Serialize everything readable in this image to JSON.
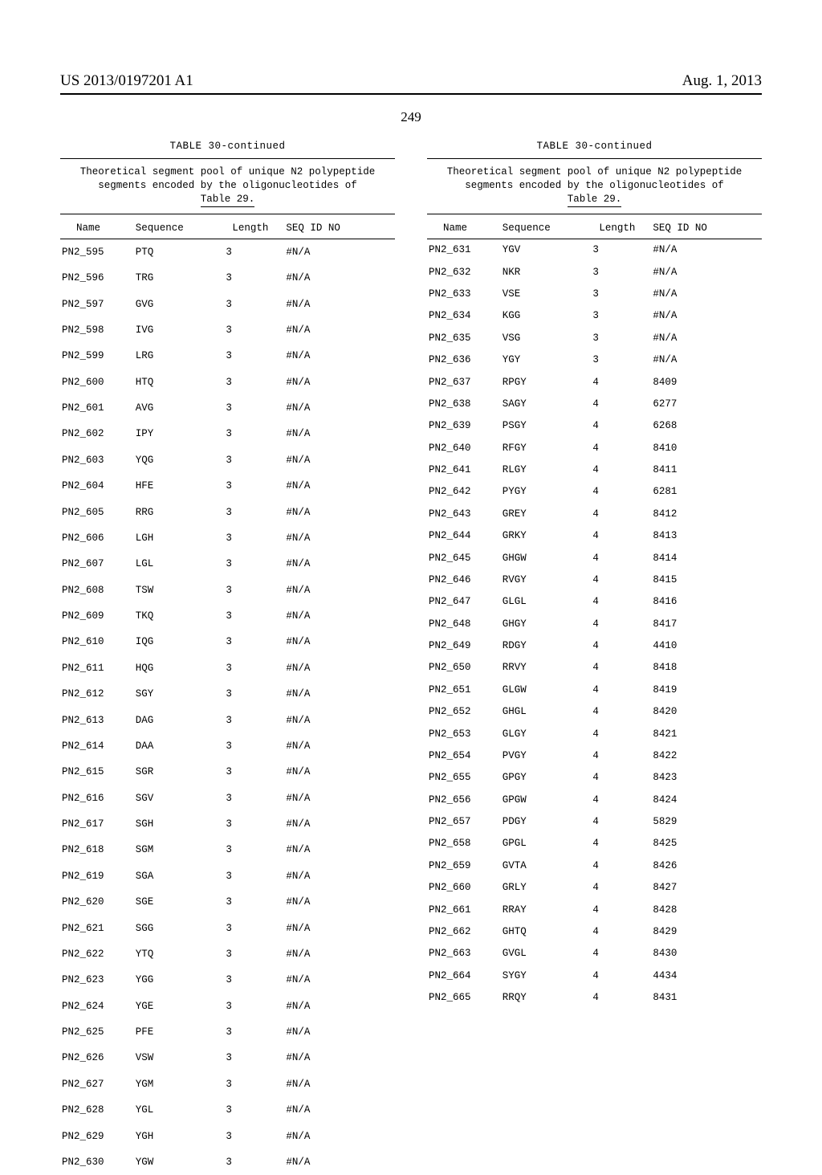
{
  "header": {
    "pub_number": "US 2013/0197201 A1",
    "pub_date": "Aug. 1, 2013",
    "page_number": "249"
  },
  "table": {
    "title": "TABLE 30-continued",
    "caption_line1": "Theoretical segment pool of unique N2 polypeptide",
    "caption_line2": "segments encoded by the oligonucleotides of",
    "caption_line3": "Table 29.",
    "headers": {
      "name": "Name",
      "sequence": "Sequence",
      "length": "Length",
      "seq_id": "SEQ ID NO"
    }
  },
  "left_rows": [
    {
      "name": "PN2_595",
      "seq": "PTQ",
      "len": "3",
      "id": "#N/A"
    },
    {
      "name": "PN2_596",
      "seq": "TRG",
      "len": "3",
      "id": "#N/A"
    },
    {
      "name": "PN2_597",
      "seq": "GVG",
      "len": "3",
      "id": "#N/A"
    },
    {
      "name": "PN2_598",
      "seq": "IVG",
      "len": "3",
      "id": "#N/A"
    },
    {
      "name": "PN2_599",
      "seq": "LRG",
      "len": "3",
      "id": "#N/A"
    },
    {
      "name": "PN2_600",
      "seq": "HTQ",
      "len": "3",
      "id": "#N/A"
    },
    {
      "name": "PN2_601",
      "seq": "AVG",
      "len": "3",
      "id": "#N/A"
    },
    {
      "name": "PN2_602",
      "seq": "IPY",
      "len": "3",
      "id": "#N/A"
    },
    {
      "name": "PN2_603",
      "seq": "YQG",
      "len": "3",
      "id": "#N/A"
    },
    {
      "name": "PN2_604",
      "seq": "HFE",
      "len": "3",
      "id": "#N/A"
    },
    {
      "name": "PN2_605",
      "seq": "RRG",
      "len": "3",
      "id": "#N/A"
    },
    {
      "name": "PN2_606",
      "seq": "LGH",
      "len": "3",
      "id": "#N/A"
    },
    {
      "name": "PN2_607",
      "seq": "LGL",
      "len": "3",
      "id": "#N/A"
    },
    {
      "name": "PN2_608",
      "seq": "TSW",
      "len": "3",
      "id": "#N/A"
    },
    {
      "name": "PN2_609",
      "seq": "TKQ",
      "len": "3",
      "id": "#N/A"
    },
    {
      "name": "PN2_610",
      "seq": "IQG",
      "len": "3",
      "id": "#N/A"
    },
    {
      "name": "PN2_611",
      "seq": "HQG",
      "len": "3",
      "id": "#N/A"
    },
    {
      "name": "PN2_612",
      "seq": "SGY",
      "len": "3",
      "id": "#N/A"
    },
    {
      "name": "PN2_613",
      "seq": "DAG",
      "len": "3",
      "id": "#N/A"
    },
    {
      "name": "PN2_614",
      "seq": "DAA",
      "len": "3",
      "id": "#N/A"
    },
    {
      "name": "PN2_615",
      "seq": "SGR",
      "len": "3",
      "id": "#N/A"
    },
    {
      "name": "PN2_616",
      "seq": "SGV",
      "len": "3",
      "id": "#N/A"
    },
    {
      "name": "PN2_617",
      "seq": "SGH",
      "len": "3",
      "id": "#N/A"
    },
    {
      "name": "PN2_618",
      "seq": "SGM",
      "len": "3",
      "id": "#N/A"
    },
    {
      "name": "PN2_619",
      "seq": "SGA",
      "len": "3",
      "id": "#N/A"
    },
    {
      "name": "PN2_620",
      "seq": "SGE",
      "len": "3",
      "id": "#N/A"
    },
    {
      "name": "PN2_621",
      "seq": "SGG",
      "len": "3",
      "id": "#N/A"
    },
    {
      "name": "PN2_622",
      "seq": "YTQ",
      "len": "3",
      "id": "#N/A"
    },
    {
      "name": "PN2_623",
      "seq": "YGG",
      "len": "3",
      "id": "#N/A"
    },
    {
      "name": "PN2_624",
      "seq": "YGE",
      "len": "3",
      "id": "#N/A"
    },
    {
      "name": "PN2_625",
      "seq": "PFE",
      "len": "3",
      "id": "#N/A"
    },
    {
      "name": "PN2_626",
      "seq": "VSW",
      "len": "3",
      "id": "#N/A"
    },
    {
      "name": "PN2_627",
      "seq": "YGM",
      "len": "3",
      "id": "#N/A"
    },
    {
      "name": "PN2_628",
      "seq": "YGL",
      "len": "3",
      "id": "#N/A"
    },
    {
      "name": "PN2_629",
      "seq": "YGH",
      "len": "3",
      "id": "#N/A"
    },
    {
      "name": "PN2_630",
      "seq": "YGW",
      "len": "3",
      "id": "#N/A"
    }
  ],
  "right_rows": [
    {
      "name": "PN2_631",
      "seq": "YGV",
      "len": "3",
      "id": "#N/A"
    },
    {
      "name": "PN2_632",
      "seq": "NKR",
      "len": "3",
      "id": "#N/A"
    },
    {
      "name": "PN2_633",
      "seq": "VSE",
      "len": "3",
      "id": "#N/A"
    },
    {
      "name": "PN2_634",
      "seq": "KGG",
      "len": "3",
      "id": "#N/A"
    },
    {
      "name": "PN2_635",
      "seq": "VSG",
      "len": "3",
      "id": "#N/A"
    },
    {
      "name": "PN2_636",
      "seq": "YGY",
      "len": "3",
      "id": "#N/A"
    },
    {
      "name": "PN2_637",
      "seq": "RPGY",
      "len": "4",
      "id": "8409"
    },
    {
      "name": "PN2_638",
      "seq": "SAGY",
      "len": "4",
      "id": "6277"
    },
    {
      "name": "PN2_639",
      "seq": "PSGY",
      "len": "4",
      "id": "6268"
    },
    {
      "name": "PN2_640",
      "seq": "RFGY",
      "len": "4",
      "id": "8410"
    },
    {
      "name": "PN2_641",
      "seq": "RLGY",
      "len": "4",
      "id": "8411"
    },
    {
      "name": "PN2_642",
      "seq": "PYGY",
      "len": "4",
      "id": "6281"
    },
    {
      "name": "PN2_643",
      "seq": "GREY",
      "len": "4",
      "id": "8412"
    },
    {
      "name": "PN2_644",
      "seq": "GRKY",
      "len": "4",
      "id": "8413"
    },
    {
      "name": "PN2_645",
      "seq": "GHGW",
      "len": "4",
      "id": "8414"
    },
    {
      "name": "PN2_646",
      "seq": "RVGY",
      "len": "4",
      "id": "8415"
    },
    {
      "name": "PN2_647",
      "seq": "GLGL",
      "len": "4",
      "id": "8416"
    },
    {
      "name": "PN2_648",
      "seq": "GHGY",
      "len": "4",
      "id": "8417"
    },
    {
      "name": "PN2_649",
      "seq": "RDGY",
      "len": "4",
      "id": "4410"
    },
    {
      "name": "PN2_650",
      "seq": "RRVY",
      "len": "4",
      "id": "8418"
    },
    {
      "name": "PN2_651",
      "seq": "GLGW",
      "len": "4",
      "id": "8419"
    },
    {
      "name": "PN2_652",
      "seq": "GHGL",
      "len": "4",
      "id": "8420"
    },
    {
      "name": "PN2_653",
      "seq": "GLGY",
      "len": "4",
      "id": "8421"
    },
    {
      "name": "PN2_654",
      "seq": "PVGY",
      "len": "4",
      "id": "8422"
    },
    {
      "name": "PN2_655",
      "seq": "GPGY",
      "len": "4",
      "id": "8423"
    },
    {
      "name": "PN2_656",
      "seq": "GPGW",
      "len": "4",
      "id": "8424"
    },
    {
      "name": "PN2_657",
      "seq": "PDGY",
      "len": "4",
      "id": "5829"
    },
    {
      "name": "PN2_658",
      "seq": "GPGL",
      "len": "4",
      "id": "8425"
    },
    {
      "name": "PN2_659",
      "seq": "GVTA",
      "len": "4",
      "id": "8426"
    },
    {
      "name": "PN2_660",
      "seq": "GRLY",
      "len": "4",
      "id": "8427"
    },
    {
      "name": "PN2_661",
      "seq": "RRAY",
      "len": "4",
      "id": "8428"
    },
    {
      "name": "PN2_662",
      "seq": "GHTQ",
      "len": "4",
      "id": "8429"
    },
    {
      "name": "PN2_663",
      "seq": "GVGL",
      "len": "4",
      "id": "8430"
    },
    {
      "name": "PN2_664",
      "seq": "SYGY",
      "len": "4",
      "id": "4434"
    },
    {
      "name": "PN2_665",
      "seq": "RRQY",
      "len": "4",
      "id": "8431"
    }
  ]
}
